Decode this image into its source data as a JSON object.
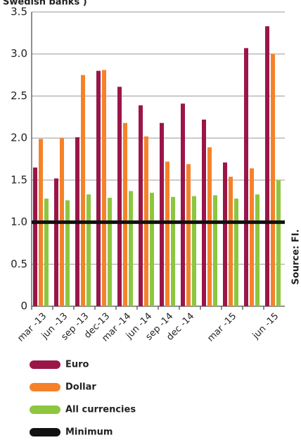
{
  "chart_data": {
    "type": "bar",
    "title": "Swedish banks )",
    "source": "Source: FI.",
    "categories": [
      "mar -13",
      "jun -13",
      "sep -13",
      "dec-13",
      "mar -14",
      "jun -14",
      "sep -14",
      "dec -14",
      null,
      "mar -15",
      null,
      "jun -15"
    ],
    "series": [
      {
        "name": "Euro",
        "color": "#9b1648",
        "values": [
          1.65,
          1.52,
          2.01,
          2.8,
          2.61,
          2.39,
          2.18,
          2.41,
          2.22,
          1.71,
          3.07,
          3.33
        ]
      },
      {
        "name": "Dollar",
        "color": "#f5822a",
        "values": [
          1.99,
          2.0,
          2.75,
          2.81,
          2.18,
          2.02,
          1.72,
          1.69,
          1.89,
          1.54,
          1.64,
          3.0
        ]
      },
      {
        "name": "All currencies",
        "color": "#8dc63f",
        "values": [
          1.28,
          1.26,
          1.33,
          1.29,
          1.37,
          1.35,
          1.3,
          1.31,
          1.32,
          1.28,
          1.33,
          1.5
        ]
      }
    ],
    "minimum": {
      "name": "Minimum",
      "value": 1,
      "color": "#111111"
    },
    "ylim": [
      0,
      3.5
    ],
    "yticks": [
      0,
      0.5,
      {
        "value": 1,
        "label": "1.0"
      },
      1.5,
      {
        "value": 2,
        "label": "2.0"
      },
      2.5,
      {
        "value": 3,
        "label": "3.0"
      },
      3.5
    ],
    "grid": true
  }
}
